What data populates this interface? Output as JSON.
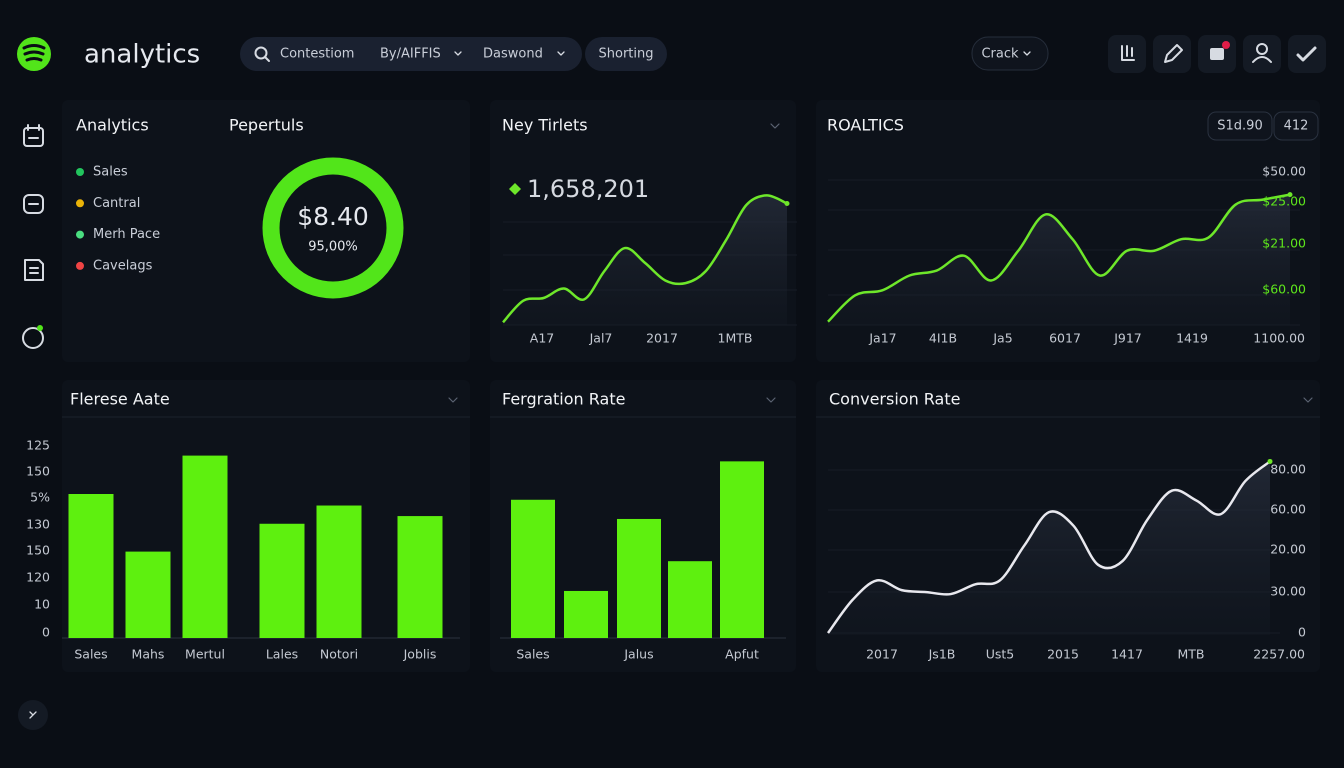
{
  "header": {
    "brand": "analytics",
    "nav": [
      "Contestiom",
      "By/AIFFIS",
      "Daswond"
    ],
    "button": "Shorting",
    "dropdown": "Crack"
  },
  "legend_panel": {
    "title": "Analytics",
    "items": [
      {
        "name": "Sales",
        "color": "#22c55e"
      },
      {
        "name": "Cantral",
        "color": "#eab308"
      },
      {
        "name": "Merh Pace",
        "color": "#4ade80"
      },
      {
        "name": "Cavelags",
        "color": "#ef4444"
      }
    ]
  },
  "donut_panel": {
    "title": "Pepertuls",
    "value": "$8.40",
    "subtitle": "95,00%",
    "color": "#52e51a"
  },
  "charts": [
    {
      "type": "line",
      "title": "Ney Tirlets",
      "headline": "1,658,201",
      "color": "#6ee72a",
      "x_labels": [
        "A17",
        "Jal7",
        "2017",
        "1MTB"
      ],
      "values": [
        2,
        18,
        20,
        27,
        19,
        40,
        57,
        46,
        33,
        31,
        40,
        63,
        89,
        96,
        90
      ],
      "ylim": [
        0,
        100
      ]
    },
    {
      "type": "line",
      "title": "ROALTICS",
      "badges": [
        "S1d.90",
        "412"
      ],
      "color": "#6ee72a",
      "y_labels": [
        "$50.00",
        "$25.00",
        "$21.00",
        "$60.00"
      ],
      "x_labels": [
        "Ja17",
        "4I1B",
        "Ja5",
        "6017",
        "J917",
        "1419",
        "1100.00"
      ],
      "values": [
        2,
        18,
        21,
        30,
        33,
        42,
        27,
        45,
        67,
        52,
        30,
        45,
        45,
        52,
        53,
        73,
        76,
        79
      ],
      "ylim": [
        0,
        100
      ]
    },
    {
      "type": "bar",
      "title": "Flerese Aate",
      "color": "#5ef00f",
      "y_labels": [
        "125",
        "150",
        "5%",
        "130",
        "150",
        "120",
        "10",
        "0"
      ],
      "categories": [
        "Sales",
        "Mahs",
        "Mertul",
        "Lales",
        "Notori",
        "Joblis"
      ],
      "values": [
        150,
        90,
        190,
        119,
        138,
        127
      ],
      "ylim": [
        0,
        200
      ]
    },
    {
      "type": "bar",
      "title": "Fergration Rate",
      "color": "#5ef00f",
      "categories": [
        "Sales",
        null,
        "Jalus",
        null,
        "Apfut"
      ],
      "values": [
        144,
        49,
        124,
        80,
        184
      ],
      "ylim": [
        0,
        200
      ]
    },
    {
      "type": "line",
      "title": "Conversion Rate",
      "color": "#e8e8ee",
      "y_labels": [
        "80.00",
        "60.00",
        "20.00",
        "30.00",
        "0"
      ],
      "x_labels": [
        "2017",
        "Js1B",
        "Ust5",
        "2015",
        "1417",
        "MTB",
        "2257.00"
      ],
      "values": [
        1,
        18,
        28,
        23,
        22,
        21,
        26,
        28,
        46,
        63,
        56,
        36,
        38,
        59,
        74,
        69,
        62,
        79,
        89
      ],
      "ylim": [
        0,
        100
      ]
    }
  ]
}
